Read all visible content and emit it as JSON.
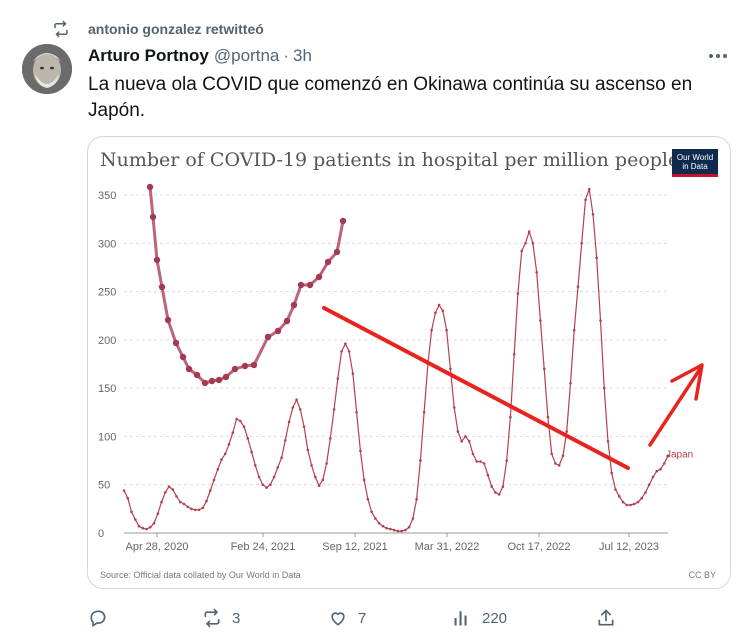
{
  "retweet": {
    "text": "antonio gonzalez retwitteó"
  },
  "tweet": {
    "author_name": "Arturo Portnoy",
    "handle": "@portna",
    "separator": "·",
    "time": "3h",
    "text": "La nueva ola COVID que comenzó en Okinawa continúa su ascenso en Japón."
  },
  "media": {
    "owid_logo": [
      "Our World",
      "in Data"
    ]
  },
  "actions": {
    "replies": "",
    "retweets": "3",
    "likes": "7",
    "views": "220"
  },
  "colors": {
    "accent_red": "#e8231f",
    "series": "#b5404f",
    "text_secondary": "#536471"
  },
  "chart_data": {
    "type": "line",
    "title": "Number of COVID-19 patients in hospital per million people",
    "source": "Source: Official data collated by Our World in Data",
    "license": "CC BY",
    "y_ticks": [
      "0",
      "50",
      "100",
      "150",
      "200",
      "250",
      "300",
      "350"
    ],
    "x_ticks": [
      "Apr 28, 2020",
      "Feb 24, 2021",
      "Sep 12, 2021",
      "Mar 31, 2022",
      "Oct 17, 2022",
      "Jul 12, 2023"
    ],
    "ylim": [
      0,
      360
    ],
    "series": [
      {
        "name": "Japan",
        "points": [
          [
            0,
            44
          ],
          [
            2,
            36
          ],
          [
            4,
            22
          ],
          [
            6,
            14
          ],
          [
            8,
            7
          ],
          [
            10,
            5
          ],
          [
            12,
            4
          ],
          [
            14,
            6
          ],
          [
            16,
            10
          ],
          [
            18,
            20
          ],
          [
            20,
            32
          ],
          [
            22,
            42
          ],
          [
            24,
            48
          ],
          [
            26,
            45
          ],
          [
            28,
            38
          ],
          [
            30,
            32
          ],
          [
            32,
            30
          ],
          [
            34,
            27
          ],
          [
            36,
            25
          ],
          [
            38,
            24
          ],
          [
            40,
            24
          ],
          [
            42,
            26
          ],
          [
            44,
            33
          ],
          [
            46,
            44
          ],
          [
            48,
            55
          ],
          [
            50,
            66
          ],
          [
            52,
            76
          ],
          [
            54,
            82
          ],
          [
            56,
            92
          ],
          [
            58,
            104
          ],
          [
            60,
            118
          ],
          [
            62,
            116
          ],
          [
            64,
            110
          ],
          [
            66,
            98
          ],
          [
            68,
            84
          ],
          [
            70,
            70
          ],
          [
            72,
            58
          ],
          [
            74,
            50
          ],
          [
            76,
            47
          ],
          [
            78,
            50
          ],
          [
            80,
            58
          ],
          [
            82,
            68
          ],
          [
            84,
            78
          ],
          [
            86,
            96
          ],
          [
            88,
            115
          ],
          [
            90,
            130
          ],
          [
            92,
            138
          ],
          [
            94,
            128
          ],
          [
            96,
            110
          ],
          [
            98,
            86
          ],
          [
            100,
            70
          ],
          [
            102,
            58
          ],
          [
            104,
            49
          ],
          [
            106,
            55
          ],
          [
            108,
            72
          ],
          [
            110,
            98
          ],
          [
            112,
            128
          ],
          [
            114,
            160
          ],
          [
            116,
            188
          ],
          [
            118,
            196
          ],
          [
            120,
            188
          ],
          [
            122,
            165
          ],
          [
            124,
            125
          ],
          [
            126,
            85
          ],
          [
            128,
            55
          ],
          [
            130,
            35
          ],
          [
            132,
            22
          ],
          [
            134,
            15
          ],
          [
            136,
            10
          ],
          [
            138,
            7
          ],
          [
            140,
            5
          ],
          [
            142,
            4
          ],
          [
            144,
            3
          ],
          [
            146,
            2
          ],
          [
            148,
            2
          ],
          [
            150,
            3
          ],
          [
            152,
            6
          ],
          [
            154,
            15
          ],
          [
            156,
            35
          ],
          [
            158,
            75
          ],
          [
            160,
            125
          ],
          [
            162,
            175
          ],
          [
            164,
            210
          ],
          [
            166,
            228
          ],
          [
            168,
            236
          ],
          [
            170,
            230
          ],
          [
            172,
            210
          ],
          [
            174,
            170
          ],
          [
            176,
            130
          ],
          [
            178,
            105
          ],
          [
            180,
            95
          ],
          [
            182,
            100
          ],
          [
            184,
            95
          ],
          [
            186,
            82
          ],
          [
            188,
            74
          ],
          [
            190,
            74
          ],
          [
            192,
            72
          ],
          [
            194,
            60
          ],
          [
            196,
            48
          ],
          [
            198,
            42
          ],
          [
            200,
            40
          ],
          [
            202,
            48
          ],
          [
            204,
            75
          ],
          [
            206,
            120
          ],
          [
            208,
            185
          ],
          [
            210,
            248
          ],
          [
            212,
            292
          ],
          [
            214,
            300
          ],
          [
            216,
            312
          ],
          [
            218,
            300
          ],
          [
            220,
            270
          ],
          [
            222,
            220
          ],
          [
            224,
            170
          ],
          [
            226,
            120
          ],
          [
            228,
            82
          ],
          [
            230,
            72
          ],
          [
            232,
            70
          ],
          [
            234,
            80
          ],
          [
            236,
            105
          ],
          [
            238,
            155
          ],
          [
            240,
            210
          ],
          [
            242,
            255
          ],
          [
            244,
            300
          ],
          [
            246,
            345
          ],
          [
            248,
            356
          ],
          [
            250,
            330
          ],
          [
            252,
            285
          ],
          [
            254,
            220
          ],
          [
            256,
            150
          ],
          [
            258,
            95
          ],
          [
            260,
            62
          ],
          [
            262,
            45
          ],
          [
            264,
            38
          ],
          [
            266,
            32
          ],
          [
            268,
            29
          ],
          [
            270,
            29
          ],
          [
            272,
            30
          ],
          [
            274,
            32
          ],
          [
            276,
            36
          ],
          [
            278,
            42
          ],
          [
            280,
            50
          ],
          [
            282,
            58
          ],
          [
            284,
            64
          ],
          [
            286,
            66
          ],
          [
            288,
            72
          ],
          [
            290,
            80
          ]
        ]
      }
    ]
  }
}
